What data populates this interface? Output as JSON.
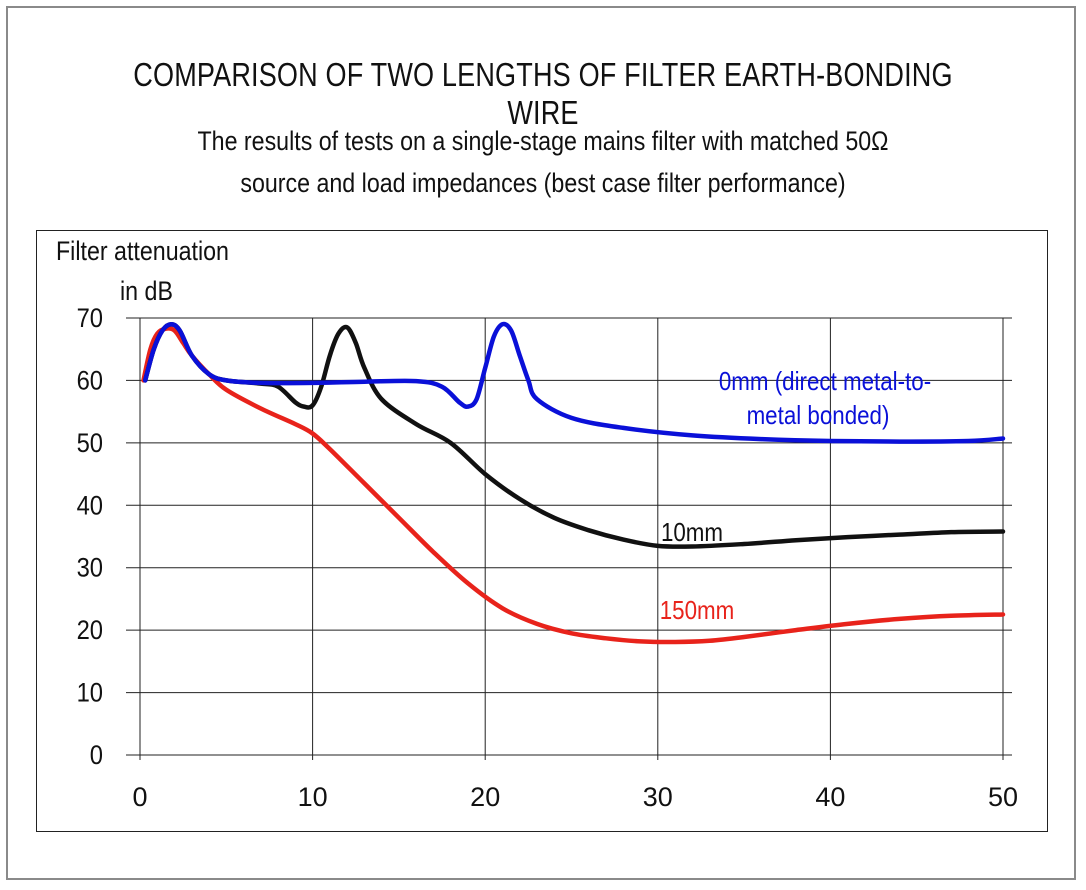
{
  "title": "COMPARISON OF TWO LENGTHS OF FILTER EARTH-BONDING WIRE",
  "subtitle_line1": "The results of tests on a single-stage mains filter with matched 50Ω",
  "subtitle_line2": "source and load impedances (best case filter performance)",
  "ylabel_line1": "Filter attenuation",
  "ylabel_line2": "in dB",
  "chart_data": {
    "type": "line",
    "title": "COMPARISON OF TWO LENGTHS OF FILTER EARTH-BONDING WIRE",
    "xlabel": "",
    "ylabel": "Filter attenuation in dB",
    "xlim": [
      0,
      50
    ],
    "ylim": [
      0,
      70
    ],
    "x_ticks": [
      0,
      10,
      20,
      30,
      40,
      50
    ],
    "y_ticks": [
      0,
      10,
      20,
      30,
      40,
      50,
      60,
      70
    ],
    "grid": "horizontal",
    "series": [
      {
        "name": "0mm (direct metal-to-metal bonded)",
        "label_lines": [
          "0mm (direct metal-to-",
          "metal bonded)"
        ],
        "color": "#0a10d8",
        "x": [
          0.3,
          0.8,
          1.3,
          1.8,
          2.3,
          3,
          4,
          5,
          7,
          10,
          13,
          16,
          17.5,
          18.5,
          19,
          19.5,
          20,
          20.5,
          21,
          21.5,
          22,
          22.5,
          23,
          25,
          28,
          32,
          36,
          40,
          44,
          48,
          50
        ],
        "y": [
          60,
          65,
          68,
          69,
          68,
          64,
          61,
          60,
          59.6,
          59.6,
          59.8,
          59.9,
          59,
          56.5,
          55.8,
          57,
          62,
          67,
          69,
          68,
          64,
          60,
          57,
          54,
          52.4,
          51.2,
          50.6,
          50.3,
          50.2,
          50.3,
          50.7
        ]
      },
      {
        "name": "10mm",
        "label_lines": [
          "10mm"
        ],
        "color": "#111111",
        "x": [
          0.3,
          0.8,
          1.3,
          1.8,
          2.3,
          3,
          4,
          5,
          7,
          8,
          9,
          9.5,
          10,
          10.5,
          11,
          11.5,
          12,
          12.5,
          13,
          14,
          16,
          18,
          20,
          22,
          24,
          26,
          28,
          30,
          32,
          35,
          38,
          41,
          44,
          47,
          50
        ],
        "y": [
          60,
          65,
          68,
          69,
          68,
          64,
          61,
          60,
          59.5,
          59,
          56.5,
          55.8,
          56,
          59,
          64,
          67.5,
          68.5,
          66,
          62,
          57,
          53,
          50,
          45,
          41,
          38,
          36,
          34.5,
          33.5,
          33.4,
          33.8,
          34.4,
          34.9,
          35.3,
          35.7,
          35.8
        ]
      },
      {
        "name": "150mm",
        "label_lines": [
          "150mm"
        ],
        "color": "#e8231b",
        "x": [
          0.2,
          0.6,
          1,
          1.5,
          2,
          2.5,
          3,
          4,
          5,
          7,
          9,
          10,
          11,
          13,
          15,
          17,
          19,
          21,
          23,
          25,
          27,
          29,
          31,
          33,
          35,
          38,
          41,
          44,
          47,
          50
        ],
        "y": [
          60,
          65,
          67.5,
          68.3,
          68,
          66,
          64,
          61,
          58.5,
          55.5,
          53,
          51.5,
          49,
          43.5,
          38,
          32.5,
          27.5,
          23.5,
          21,
          19.5,
          18.7,
          18.2,
          18.1,
          18.3,
          18.9,
          20,
          21,
          21.8,
          22.3,
          22.5
        ]
      }
    ]
  }
}
